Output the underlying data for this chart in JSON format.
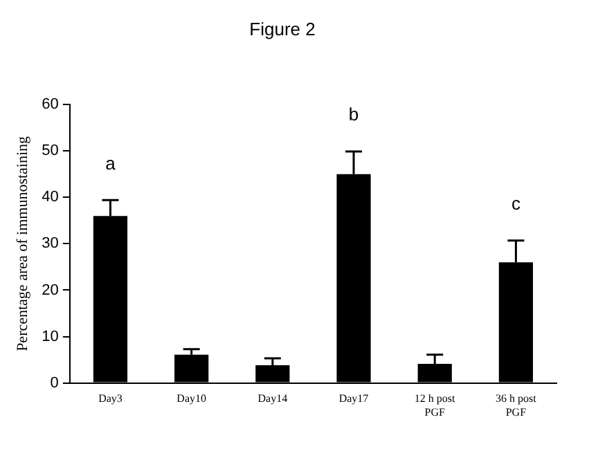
{
  "chart_data": {
    "type": "bar",
    "title": "Figure 2",
    "ylabel": "Percentage area of immunostaining",
    "categories": [
      "Day3",
      "Day10",
      "Day14",
      "Day17",
      "12 h post PGF",
      "36 h post PGF"
    ],
    "values": [
      36,
      6.1,
      3.8,
      45,
      4.1,
      26
    ],
    "errors": [
      [
        36,
        39.4
      ],
      [
        6.1,
        7.3
      ],
      [
        3.8,
        5.3
      ],
      [
        45,
        49.9
      ],
      [
        4.1,
        6.1
      ],
      [
        26,
        30.7
      ]
    ],
    "color": "#000000",
    "value_labels": [
      "a",
      null,
      null,
      "b",
      null,
      "c"
    ],
    "ylim": [
      0,
      60
    ],
    "yticks": [
      0,
      10,
      20,
      30,
      40,
      50,
      60
    ],
    "grid": false,
    "legend": false
  }
}
